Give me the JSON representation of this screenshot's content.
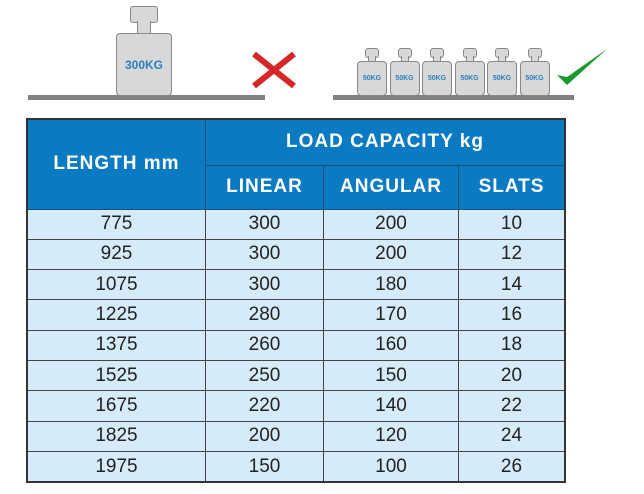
{
  "illustration": {
    "wrong": {
      "weight_label": "300KG",
      "icon": "cross-icon",
      "color": "#d62728"
    },
    "right": {
      "weight_labels": [
        "50KG",
        "50KG",
        "50KG",
        "50KG",
        "50KG",
        "50KG"
      ],
      "icon": "check-icon",
      "color": "#1a9a2e"
    }
  },
  "table": {
    "header_color": "#0a7bc2",
    "row_color": "#d6ebfa",
    "length_header": "LENGTH mm",
    "capacity_header": "LOAD CAPACITY kg",
    "sub_headers": [
      "LINEAR",
      "ANGULAR",
      "SLATS"
    ],
    "rows": [
      [
        "775",
        "300",
        "200",
        "10"
      ],
      [
        "925",
        "300",
        "200",
        "12"
      ],
      [
        "1075",
        "300",
        "180",
        "14"
      ],
      [
        "1225",
        "280",
        "170",
        "16"
      ],
      [
        "1375",
        "260",
        "160",
        "18"
      ],
      [
        "1525",
        "250",
        "150",
        "20"
      ],
      [
        "1675",
        "220",
        "140",
        "22"
      ],
      [
        "1825",
        "200",
        "120",
        "24"
      ],
      [
        "1975",
        "150",
        "100",
        "26"
      ]
    ]
  }
}
